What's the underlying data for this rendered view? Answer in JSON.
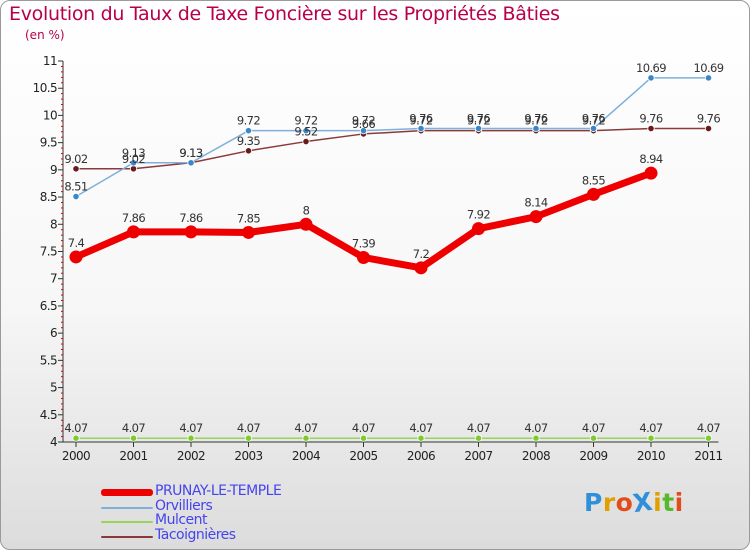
{
  "title": "Evolution du Taux de Taxe Foncière sur les Propriétés Bâties",
  "unit_label": "(en %)",
  "logo": {
    "text": "ProXiti",
    "letters": [
      "P",
      "r",
      "o",
      "X",
      "i",
      "t",
      "i"
    ],
    "colors": [
      "#2f8fd8",
      "#e0a000",
      "#e24b1a",
      "#2f8fd8",
      "#e0a000",
      "#58b82c",
      "#e24b1a"
    ]
  },
  "chart_data": {
    "type": "line",
    "title": "Evolution du Taux de Taxe Foncière sur les Propriétés Bâties",
    "ylabel": "(en %)",
    "xlabel": "",
    "ylim": [
      4,
      11
    ],
    "y_ticks": [
      "4",
      "4.5",
      "5",
      "5.5",
      "6",
      "6.5",
      "7",
      "7.5",
      "8",
      "8.5",
      "9",
      "9.5",
      "10",
      "10.5",
      "11"
    ],
    "y_tick_values": [
      4,
      4.5,
      5,
      5.5,
      6,
      6.5,
      7,
      7.5,
      8,
      8.5,
      9,
      9.5,
      10,
      10.5,
      11
    ],
    "categories": [
      "2000",
      "2001",
      "2002",
      "2003",
      "2004",
      "2005",
      "2006",
      "2007",
      "2008",
      "2009",
      "2010",
      "2011"
    ],
    "series": [
      {
        "name": "Mulcent",
        "color": "#99d45a",
        "marker": "#7ccc2e",
        "values": [
          4.07,
          4.07,
          4.07,
          4.07,
          4.07,
          4.07,
          4.07,
          4.07,
          4.07,
          4.07,
          4.07,
          4.07
        ],
        "labels": [
          "4.07",
          "4.07",
          "4.07",
          "4.07",
          "4.07",
          "4.07",
          "4.07",
          "4.07",
          "4.07",
          "4.07",
          "4.07",
          "4.07"
        ]
      },
      {
        "name": "Tacoignières",
        "color": "#8a3a3a",
        "marker": "#6a1a1a",
        "values": [
          9.02,
          9.02,
          9.13,
          9.35,
          9.52,
          9.66,
          9.72,
          9.72,
          9.72,
          9.72,
          9.76,
          9.76
        ],
        "labels": [
          "9.02",
          "9.02",
          "9.13",
          "9.35",
          "9.52",
          "9.66",
          "9.72",
          "9.72",
          "9.72",
          "9.72",
          "9.76",
          "9.76"
        ]
      },
      {
        "name": "Orvilliers",
        "color": "#7fb0d8",
        "marker": "#3a86c8",
        "values": [
          8.51,
          9.13,
          9.13,
          9.72,
          9.72,
          9.72,
          9.76,
          9.76,
          9.76,
          9.76,
          10.69,
          10.69
        ],
        "labels": [
          "8.51",
          "9.13",
          "9.13",
          "9.72",
          "9.72",
          "9.72",
          "9.76",
          "9.76",
          "9.76",
          "9.76",
          "10.69",
          "10.69"
        ]
      },
      {
        "name": "PRUNAY-LE-TEMPLE",
        "color": "#ee0000",
        "marker": "#ee0000",
        "values": [
          7.4,
          7.86,
          7.86,
          7.85,
          8,
          7.39,
          7.2,
          7.92,
          8.14,
          8.55,
          8.94,
          null
        ],
        "labels": [
          "7.4",
          "7.86",
          "7.86",
          "7.85",
          "8",
          "7.39",
          "7.2",
          "7.92",
          "8.14",
          "8.55",
          "8.94",
          ""
        ]
      }
    ],
    "legend": [
      {
        "name": "PRUNAY-LE-TEMPLE",
        "color": "#ee0000",
        "text_color": "#4444ee"
      },
      {
        "name": "Orvilliers",
        "color": "#7fb0d8",
        "text_color": "#4444ee"
      },
      {
        "name": "Mulcent",
        "color": "#99d45a",
        "text_color": "#4444ee"
      },
      {
        "name": "Tacoignières",
        "color": "#8a3a3a",
        "text_color": "#4444ee"
      }
    ],
    "legend_position": "bottom-left",
    "grid": false
  }
}
